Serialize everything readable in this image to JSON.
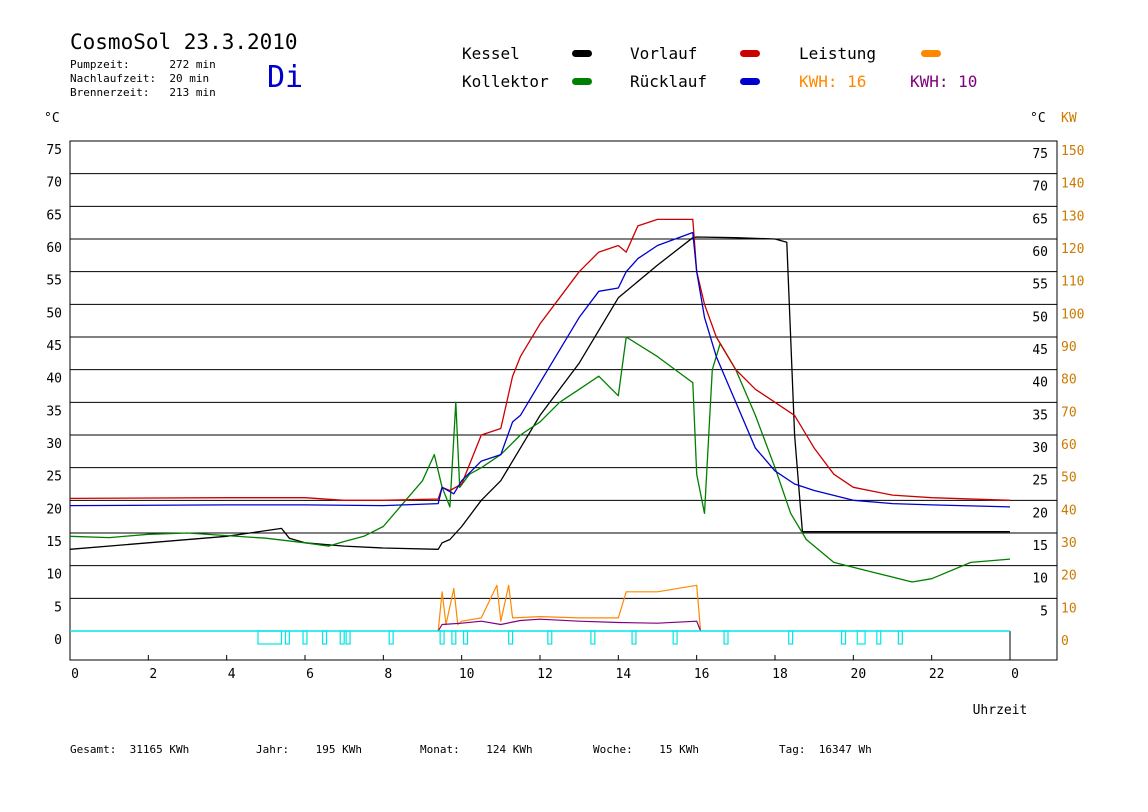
{
  "header": {
    "title": "CosmoSol 23.3.2010",
    "day": "Di",
    "info": [
      {
        "label": "Pumpzeit:",
        "value": "272 min"
      },
      {
        "label": "Nachlaufzeit:",
        "value": "20 min"
      },
      {
        "label": "Brennerzeit:",
        "value": "213 min"
      }
    ]
  },
  "legend": {
    "kessel": "Kessel",
    "kollektor": "Kollektor",
    "vorlauf": "Vorlauf",
    "ruecklauf": "Rücklauf",
    "leistung": "Leistung",
    "kwh1": "KWH: 16",
    "kwh2": "KWH: 10"
  },
  "colors": {
    "kessel": "#000000",
    "kollektor": "#008000",
    "vorlauf": "#cc0000",
    "ruecklauf": "#0000cc",
    "leistung": "#ff8800",
    "kwh2": "#800080",
    "status": "#00e5e5",
    "day": "#0000cc"
  },
  "footer": [
    {
      "label": "Gesamt:",
      "value": "31165 KWh"
    },
    {
      "label": "Jahr:",
      "value": "195 KWh"
    },
    {
      "label": "Monat:",
      "value": "124 KWh"
    },
    {
      "label": "Woche:",
      "value": "15 KWh"
    },
    {
      "label": "Tag:",
      "value": "16347 Wh"
    }
  ],
  "chart_data": {
    "type": "line",
    "xlabel": "Uhrzeit",
    "ylabel_left": "°C",
    "ylabel_right_temp": "°C",
    "ylabel_right_power": "KW",
    "xlim": [
      0,
      24
    ],
    "ylim": [
      0,
      75
    ],
    "x_ticks": [
      "0",
      "2",
      "4",
      "6",
      "8",
      "10",
      "12",
      "14",
      "16",
      "18",
      "20",
      "22",
      "0"
    ],
    "y_ticks_left": [
      "0",
      "5",
      "10",
      "15",
      "20",
      "25",
      "30",
      "35",
      "40",
      "45",
      "50",
      "55",
      "60",
      "65",
      "70",
      "75"
    ],
    "y_ticks_right_temp": [
      "5",
      "10",
      "15",
      "20",
      "25",
      "30",
      "35",
      "40",
      "45",
      "50",
      "55",
      "60",
      "65",
      "70",
      "75"
    ],
    "y_ticks_right_power": [
      "0",
      "10",
      "20",
      "30",
      "40",
      "50",
      "60",
      "70",
      "80",
      "90",
      "100",
      "110",
      "120",
      "130",
      "140",
      "150"
    ],
    "grid": true,
    "series": [
      {
        "name": "Kessel",
        "key": "kessel",
        "points": [
          [
            0,
            12.5
          ],
          [
            2,
            13.5
          ],
          [
            4,
            14.5
          ],
          [
            5.4,
            15.7
          ],
          [
            5.6,
            14.2
          ],
          [
            6,
            13.5
          ],
          [
            7,
            13
          ],
          [
            8,
            12.7
          ],
          [
            9.4,
            12.5
          ],
          [
            9.5,
            13.5
          ],
          [
            9.7,
            14
          ],
          [
            10,
            16
          ],
          [
            10.5,
            20
          ],
          [
            11,
            23
          ],
          [
            11.5,
            28
          ],
          [
            12,
            33
          ],
          [
            13,
            41
          ],
          [
            14,
            51
          ],
          [
            15,
            56
          ],
          [
            15.9,
            60.2
          ],
          [
            16,
            60.3
          ],
          [
            17,
            60.2
          ],
          [
            18,
            60
          ],
          [
            18.3,
            59.5
          ],
          [
            18.5,
            30
          ],
          [
            18.7,
            15.2
          ],
          [
            19.5,
            15.2
          ],
          [
            24,
            15.2
          ]
        ]
      },
      {
        "name": "Kollektor",
        "key": "kollektor",
        "points": [
          [
            0,
            14.5
          ],
          [
            1,
            14.3
          ],
          [
            2,
            14.8
          ],
          [
            3,
            15
          ],
          [
            4,
            14.6
          ],
          [
            5,
            14.2
          ],
          [
            6,
            13.5
          ],
          [
            6.6,
            13
          ],
          [
            7,
            13.7
          ],
          [
            7.5,
            14.5
          ],
          [
            8,
            16
          ],
          [
            8.5,
            19.5
          ],
          [
            9,
            23
          ],
          [
            9.3,
            27
          ],
          [
            9.5,
            22
          ],
          [
            9.7,
            19
          ],
          [
            9.85,
            35
          ],
          [
            9.95,
            22
          ],
          [
            10.2,
            24
          ],
          [
            10.5,
            25
          ],
          [
            11,
            27
          ],
          [
            11.5,
            30
          ],
          [
            12,
            32
          ],
          [
            12.5,
            35
          ],
          [
            13,
            37
          ],
          [
            13.5,
            39
          ],
          [
            14,
            36
          ],
          [
            14.2,
            45
          ],
          [
            15,
            42
          ],
          [
            15.9,
            38
          ],
          [
            16,
            24
          ],
          [
            16.2,
            18
          ],
          [
            16.4,
            40
          ],
          [
            16.6,
            44
          ],
          [
            17,
            40
          ],
          [
            17.5,
            33
          ],
          [
            18,
            25
          ],
          [
            18.4,
            18
          ],
          [
            18.8,
            14
          ],
          [
            19.5,
            10.5
          ],
          [
            20.5,
            9
          ],
          [
            21.5,
            7.5
          ],
          [
            22,
            8
          ],
          [
            23,
            10.5
          ],
          [
            24,
            11
          ]
        ]
      },
      {
        "name": "Vorlauf",
        "key": "vorlauf",
        "points": [
          [
            0,
            20.3
          ],
          [
            4,
            20.4
          ],
          [
            6,
            20.4
          ],
          [
            7,
            20
          ],
          [
            8,
            20
          ],
          [
            9.4,
            20.2
          ],
          [
            9.5,
            22
          ],
          [
            9.7,
            21.5
          ],
          [
            10,
            22.5
          ],
          [
            10.5,
            30
          ],
          [
            11,
            31
          ],
          [
            11.3,
            39
          ],
          [
            11.5,
            42
          ],
          [
            12,
            47
          ],
          [
            12.5,
            51
          ],
          [
            13,
            55
          ],
          [
            13.5,
            58
          ],
          [
            14,
            59
          ],
          [
            14.2,
            58
          ],
          [
            14.5,
            62
          ],
          [
            15,
            63
          ],
          [
            15.9,
            63
          ],
          [
            16,
            55
          ],
          [
            16.2,
            50
          ],
          [
            16.5,
            45
          ],
          [
            17,
            40
          ],
          [
            17.5,
            37
          ],
          [
            18,
            35
          ],
          [
            18.5,
            33
          ],
          [
            19,
            28
          ],
          [
            19.5,
            24
          ],
          [
            20,
            22
          ],
          [
            21,
            20.8
          ],
          [
            22,
            20.4
          ],
          [
            24,
            20
          ]
        ]
      },
      {
        "name": "Rücklauf",
        "key": "ruecklauf",
        "points": [
          [
            0,
            19.2
          ],
          [
            4,
            19.3
          ],
          [
            6,
            19.3
          ],
          [
            8,
            19.2
          ],
          [
            9.4,
            19.5
          ],
          [
            9.5,
            22
          ],
          [
            9.8,
            21
          ],
          [
            10,
            23
          ],
          [
            10.5,
            26
          ],
          [
            11,
            27
          ],
          [
            11.3,
            32
          ],
          [
            11.5,
            33
          ],
          [
            12,
            38
          ],
          [
            12.5,
            43
          ],
          [
            13,
            48
          ],
          [
            13.5,
            52
          ],
          [
            14,
            52.5
          ],
          [
            14.2,
            55
          ],
          [
            14.5,
            57
          ],
          [
            15,
            59
          ],
          [
            15.9,
            61
          ],
          [
            16,
            55
          ],
          [
            16.2,
            48
          ],
          [
            16.5,
            42
          ],
          [
            17,
            35
          ],
          [
            17.5,
            28
          ],
          [
            18,
            24.5
          ],
          [
            18.5,
            22.5
          ],
          [
            19,
            21.5
          ],
          [
            20,
            20
          ],
          [
            21,
            19.5
          ],
          [
            22,
            19.3
          ],
          [
            24,
            19
          ]
        ]
      },
      {
        "name": "Leistung",
        "key": "leistung",
        "points": [
          [
            9.4,
            0
          ],
          [
            9.5,
            6
          ],
          [
            9.6,
            1
          ],
          [
            9.8,
            6.5
          ],
          [
            9.9,
            1
          ],
          [
            10,
            1.5
          ],
          [
            10.5,
            2
          ],
          [
            10.9,
            7
          ],
          [
            11,
            1.5
          ],
          [
            11.2,
            7
          ],
          [
            11.3,
            2
          ],
          [
            12,
            2.2
          ],
          [
            13,
            2
          ],
          [
            14,
            2
          ],
          [
            14.2,
            6
          ],
          [
            15,
            6
          ],
          [
            16,
            7
          ],
          [
            16.1,
            0
          ]
        ]
      },
      {
        "name": "KWH",
        "key": "kwh2",
        "points": [
          [
            9.4,
            0
          ],
          [
            9.5,
            1
          ],
          [
            10,
            1.2
          ],
          [
            10.5,
            1.5
          ],
          [
            11,
            1
          ],
          [
            11.5,
            1.6
          ],
          [
            12,
            1.8
          ],
          [
            13,
            1.5
          ],
          [
            14,
            1.3
          ],
          [
            15,
            1.2
          ],
          [
            16,
            1.5
          ],
          [
            16.1,
            0
          ]
        ]
      },
      {
        "name": "Status",
        "key": "status",
        "points": [
          [
            0,
            0
          ],
          [
            24,
            0
          ]
        ]
      }
    ]
  }
}
